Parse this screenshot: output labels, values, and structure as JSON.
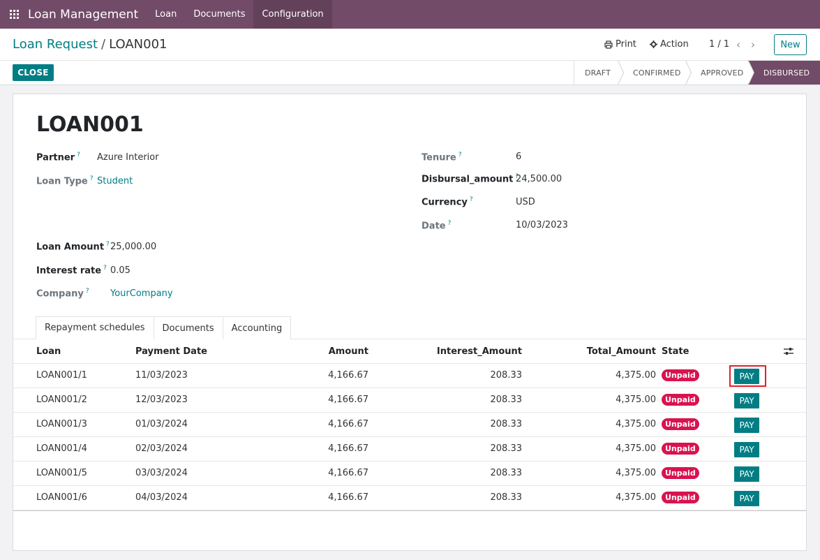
{
  "navbar": {
    "brand": "Loan Management",
    "menu": [
      "Loan",
      "Documents",
      "Configuration"
    ]
  },
  "breadcrumb": {
    "parent": "Loan Request",
    "separator": "/",
    "current": "LOAN001"
  },
  "toolbar": {
    "print_label": "Print",
    "action_label": "Action",
    "pager": "1 / 1",
    "new_label": "New",
    "close_label": "CLOSE"
  },
  "status_stages": [
    "DRAFT",
    "CONFIRMED",
    "APPROVED",
    "DISBURSED"
  ],
  "status_active": "DISBURSED",
  "form": {
    "title": "LOAN001",
    "partner_label": "Partner",
    "partner_value": "Azure Interior",
    "loan_type_label": "Loan Type",
    "loan_type_value": "Student",
    "loan_amount_label": "Loan Amount",
    "loan_amount_value": "25,000.00",
    "interest_rate_label": "Interest rate",
    "interest_rate_value": "0.05",
    "company_label": "Company",
    "company_value": "YourCompany",
    "tenure_label": "Tenure",
    "tenure_value": "6",
    "disbursal_label": "Disbursal_amount",
    "disbursal_value": "24,500.00",
    "currency_label": "Currency",
    "currency_value": "USD",
    "date_label": "Date",
    "date_value": "10/03/2023",
    "help_mark": "?"
  },
  "tabs": [
    "Repayment schedules",
    "Documents",
    "Accounting"
  ],
  "table": {
    "headers": [
      "Loan",
      "Payment Date",
      "Amount",
      "Interest_Amount",
      "Total_Amount",
      "State"
    ],
    "rows": [
      {
        "loan": "LOAN001/1",
        "date": "11/03/2023",
        "amount": "4,166.67",
        "interest": "208.33",
        "total": "4,375.00",
        "state": "Unpaid",
        "action": "PAY"
      },
      {
        "loan": "LOAN001/2",
        "date": "12/03/2023",
        "amount": "4,166.67",
        "interest": "208.33",
        "total": "4,375.00",
        "state": "Unpaid",
        "action": "PAY"
      },
      {
        "loan": "LOAN001/3",
        "date": "01/03/2024",
        "amount": "4,166.67",
        "interest": "208.33",
        "total": "4,375.00",
        "state": "Unpaid",
        "action": "PAY"
      },
      {
        "loan": "LOAN001/4",
        "date": "02/03/2024",
        "amount": "4,166.67",
        "interest": "208.33",
        "total": "4,375.00",
        "state": "Unpaid",
        "action": "PAY"
      },
      {
        "loan": "LOAN001/5",
        "date": "03/03/2024",
        "amount": "4,166.67",
        "interest": "208.33",
        "total": "4,375.00",
        "state": "Unpaid",
        "action": "PAY"
      },
      {
        "loan": "LOAN001/6",
        "date": "04/03/2024",
        "amount": "4,166.67",
        "interest": "208.33",
        "total": "4,375.00",
        "state": "Unpaid",
        "action": "PAY"
      }
    ]
  },
  "colors": {
    "brand": "#714b67",
    "accent": "#017e84",
    "danger": "#d9134f"
  },
  "icons": {
    "apps": "apps-grid-icon",
    "print": "printer-icon",
    "action": "gear-icon",
    "prev": "chevron-left-icon",
    "next": "chevron-right-icon",
    "optional_columns": "sliders-icon"
  }
}
